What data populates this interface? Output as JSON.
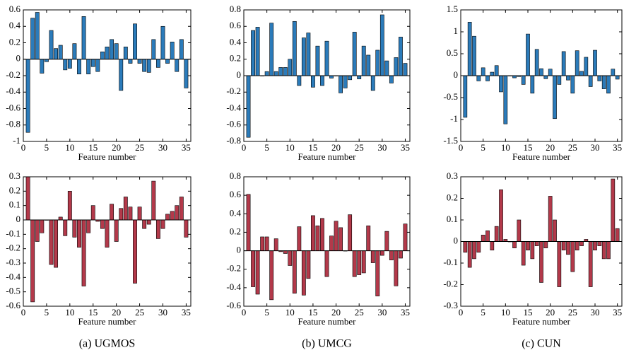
{
  "chart_data": [
    {
      "type": "bar",
      "color": "#2b7bba",
      "xlabel": "Feature number",
      "x": [
        1,
        2,
        3,
        4,
        5,
        6,
        7,
        8,
        9,
        10,
        11,
        12,
        13,
        14,
        15,
        16,
        17,
        18,
        19,
        20,
        21,
        22,
        23,
        24,
        25,
        26,
        27,
        28,
        29,
        30,
        31,
        32,
        33,
        34,
        35
      ],
      "values": [
        -0.89,
        0.5,
        0.57,
        -0.17,
        -0.03,
        0.35,
        0.13,
        0.17,
        -0.13,
        -0.11,
        0.19,
        -0.18,
        0.52,
        -0.18,
        -0.09,
        -0.15,
        0.09,
        0.15,
        0.24,
        0.19,
        -0.38,
        0.15,
        -0.05,
        0.43,
        -0.05,
        -0.15,
        -0.16,
        0.24,
        -0.1,
        0.4,
        -0.05,
        0.21,
        -0.15,
        0.24,
        -0.35
      ],
      "xlim": [
        0,
        36
      ],
      "xticks": [
        0,
        5,
        10,
        15,
        20,
        25,
        30,
        35
      ],
      "ylim": [
        -1,
        0.6
      ],
      "yticks": [
        -1,
        -0.8,
        -0.6,
        -0.4,
        -0.2,
        0,
        0.2,
        0.4,
        0.6
      ]
    },
    {
      "type": "bar",
      "color": "#2b7bba",
      "xlabel": "Feature number",
      "x": [
        1,
        2,
        3,
        4,
        5,
        6,
        7,
        8,
        9,
        10,
        11,
        12,
        13,
        14,
        15,
        16,
        17,
        18,
        19,
        20,
        21,
        22,
        23,
        24,
        25,
        26,
        27,
        28,
        29,
        30,
        31,
        32,
        33,
        34,
        35
      ],
      "values": [
        -0.75,
        0.55,
        0.59,
        0.0,
        0.05,
        0.64,
        0.05,
        0.1,
        0.1,
        0.2,
        0.66,
        -0.12,
        0.46,
        0.52,
        -0.14,
        0.36,
        -0.12,
        0.42,
        -0.03,
        0.0,
        -0.21,
        -0.15,
        -0.05,
        0.53,
        -0.04,
        0.36,
        0.25,
        -0.18,
        0.31,
        0.74,
        0.18,
        -0.09,
        0.22,
        0.47,
        0.15
      ],
      "xlim": [
        0,
        36
      ],
      "xticks": [
        0,
        5,
        10,
        15,
        20,
        25,
        30,
        35
      ],
      "ylim": [
        -0.8,
        0.8
      ],
      "yticks": [
        -0.8,
        -0.6,
        -0.4,
        -0.2,
        0,
        0.2,
        0.4,
        0.6,
        0.8
      ]
    },
    {
      "type": "bar",
      "color": "#2b7bba",
      "xlabel": "Feature number",
      "x": [
        1,
        2,
        3,
        4,
        5,
        6,
        7,
        8,
        9,
        10,
        11,
        12,
        13,
        14,
        15,
        16,
        17,
        18,
        19,
        20,
        21,
        22,
        23,
        24,
        25,
        26,
        27,
        28,
        29,
        30,
        31,
        32,
        33,
        34,
        35
      ],
      "values": [
        -0.95,
        1.22,
        0.9,
        -0.12,
        0.18,
        -0.12,
        0.08,
        0.23,
        -0.37,
        -1.1,
        0.0,
        -0.05,
        -0.02,
        -0.2,
        0.95,
        -0.4,
        0.6,
        0.16,
        -0.07,
        0.15,
        -0.98,
        -0.2,
        0.55,
        -0.1,
        -0.4,
        0.57,
        0.1,
        0.42,
        -0.25,
        0.58,
        -0.12,
        -0.3,
        -0.4,
        0.15,
        -0.08
      ],
      "xlim": [
        0,
        36
      ],
      "xticks": [
        0,
        5,
        10,
        15,
        20,
        25,
        30,
        35
      ],
      "ylim": [
        -1.5,
        1.5
      ],
      "yticks": [
        -1.5,
        -1,
        -0.5,
        0,
        0.5,
        1,
        1.5
      ]
    },
    {
      "type": "bar",
      "color": "#b3394a",
      "xlabel": "Feature number",
      "caption": "(a) UGMOS",
      "x": [
        1,
        2,
        3,
        4,
        5,
        6,
        7,
        8,
        9,
        10,
        11,
        12,
        13,
        14,
        15,
        16,
        17,
        18,
        19,
        20,
        21,
        22,
        23,
        24,
        25,
        26,
        27,
        28,
        29,
        30,
        31,
        32,
        33,
        34,
        35
      ],
      "values": [
        0.3,
        -0.57,
        -0.15,
        -0.09,
        0.0,
        -0.31,
        -0.33,
        0.02,
        -0.11,
        0.2,
        -0.12,
        -0.19,
        -0.46,
        -0.09,
        0.1,
        -0.01,
        -0.06,
        -0.19,
        0.11,
        -0.15,
        0.08,
        0.16,
        0.09,
        -0.44,
        0.09,
        -0.06,
        -0.03,
        0.27,
        -0.13,
        -0.06,
        0.04,
        0.06,
        0.1,
        0.16,
        -0.12
      ],
      "xlim": [
        0,
        36
      ],
      "xticks": [
        0,
        5,
        10,
        15,
        20,
        25,
        30,
        35
      ],
      "ylim": [
        -0.6,
        0.3
      ],
      "yticks": [
        -0.6,
        -0.5,
        -0.4,
        -0.3,
        -0.2,
        -0.1,
        0,
        0.1,
        0.2,
        0.3
      ]
    },
    {
      "type": "bar",
      "color": "#b3394a",
      "xlabel": "Feature number",
      "caption": "(b) UMCG",
      "x": [
        1,
        2,
        3,
        4,
        5,
        6,
        7,
        8,
        9,
        10,
        11,
        12,
        13,
        14,
        15,
        16,
        17,
        18,
        19,
        20,
        21,
        22,
        23,
        24,
        25,
        26,
        27,
        28,
        29,
        30,
        31,
        32,
        33,
        34,
        35
      ],
      "values": [
        0.61,
        -0.39,
        -0.47,
        0.15,
        0.15,
        -0.53,
        0.13,
        -0.01,
        -0.03,
        -0.16,
        -0.46,
        0.26,
        -0.48,
        -0.3,
        0.38,
        0.27,
        0.35,
        -0.28,
        0.16,
        0.32,
        0.25,
        0.0,
        0.39,
        -0.28,
        -0.26,
        -0.24,
        0.27,
        -0.13,
        -0.49,
        -0.05,
        0.21,
        -0.1,
        -0.38,
        -0.08,
        0.29
      ],
      "xlim": [
        0,
        36
      ],
      "xticks": [
        0,
        5,
        10,
        15,
        20,
        25,
        30,
        35
      ],
      "ylim": [
        -0.6,
        0.8
      ],
      "yticks": [
        -0.6,
        -0.4,
        -0.2,
        0,
        0.2,
        0.4,
        0.6,
        0.8
      ]
    },
    {
      "type": "bar",
      "color": "#b3394a",
      "xlabel": "Feature number",
      "caption": "(c) CUN",
      "x": [
        1,
        2,
        3,
        4,
        5,
        6,
        7,
        8,
        9,
        10,
        11,
        12,
        13,
        14,
        15,
        16,
        17,
        18,
        19,
        20,
        21,
        22,
        23,
        24,
        25,
        26,
        27,
        28,
        29,
        30,
        31,
        32,
        33,
        34,
        35
      ],
      "values": [
        -0.05,
        -0.12,
        -0.08,
        -0.05,
        0.03,
        0.05,
        -0.04,
        0.07,
        0.24,
        0.01,
        0.0,
        -0.03,
        0.1,
        -0.11,
        -0.04,
        -0.08,
        -0.02,
        -0.19,
        -0.03,
        0.21,
        0.1,
        -0.21,
        -0.04,
        -0.06,
        -0.14,
        -0.04,
        -0.02,
        0.01,
        -0.21,
        -0.04,
        -0.02,
        -0.08,
        -0.08,
        0.29,
        0.06
      ],
      "xlim": [
        0,
        36
      ],
      "xticks": [
        0,
        5,
        10,
        15,
        20,
        25,
        30,
        35
      ],
      "ylim": [
        -0.3,
        0.3
      ],
      "yticks": [
        -0.3,
        -0.2,
        -0.1,
        0,
        0.1,
        0.2,
        0.3
      ]
    }
  ]
}
